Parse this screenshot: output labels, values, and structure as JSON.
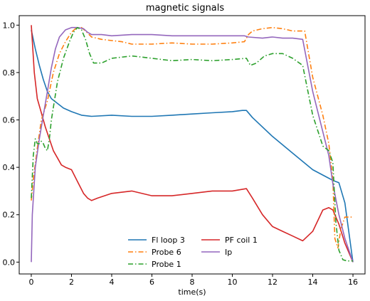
{
  "chart_data": {
    "type": "line",
    "title": "magnetic signals",
    "xlabel": "time(s)",
    "ylabel": "",
    "xlim": [
      -0.6,
      16.6
    ],
    "ylim": [
      -0.05,
      1.04
    ],
    "x_ticks": [
      0,
      2,
      4,
      6,
      8,
      10,
      12,
      14,
      16
    ],
    "x_tick_labels": [
      "0",
      "2",
      "4",
      "6",
      "8",
      "10",
      "12",
      "14",
      "16"
    ],
    "y_ticks": [
      0.0,
      0.2,
      0.4,
      0.6,
      0.8,
      1.0
    ],
    "y_tick_labels": [
      "0.0",
      "0.2",
      "0.4",
      "0.6",
      "0.8",
      "1.0"
    ],
    "grid": false,
    "legend_position": "bottom-center",
    "series": [
      {
        "name": "Fl loop 3",
        "color": "#1f77b4",
        "style": "solid",
        "x": [
          0,
          0.2,
          0.4,
          0.6,
          0.8,
          1.0,
          1.3,
          1.6,
          2.0,
          2.5,
          3.0,
          4.0,
          5.0,
          6.0,
          7.0,
          8.0,
          9.0,
          10.0,
          10.5,
          10.7,
          11.0,
          12.0,
          13.0,
          14.0,
          15.0,
          15.3,
          15.6,
          16.0
        ],
        "y": [
          0.98,
          0.9,
          0.83,
          0.77,
          0.72,
          0.69,
          0.67,
          0.65,
          0.635,
          0.62,
          0.615,
          0.62,
          0.615,
          0.615,
          0.62,
          0.625,
          0.63,
          0.635,
          0.64,
          0.64,
          0.61,
          0.53,
          0.46,
          0.39,
          0.345,
          0.335,
          0.25,
          0.0
        ]
      },
      {
        "name": "PF coil 1",
        "color": "#d62728",
        "style": "solid",
        "x": [
          0,
          0.15,
          0.3,
          0.5,
          0.7,
          0.9,
          1.1,
          1.3,
          1.5,
          1.7,
          2.0,
          2.3,
          2.6,
          2.8,
          3.0,
          3.3,
          4.0,
          5.0,
          6.0,
          7.0,
          8.0,
          9.0,
          10.0,
          10.7,
          11.0,
          11.5,
          12.0,
          12.5,
          13.0,
          13.5,
          14.0,
          14.5,
          14.8,
          15.0,
          15.3,
          15.6,
          16.0
        ],
        "y": [
          1.0,
          0.8,
          0.69,
          0.63,
          0.57,
          0.52,
          0.47,
          0.44,
          0.41,
          0.4,
          0.39,
          0.34,
          0.29,
          0.27,
          0.26,
          0.27,
          0.29,
          0.3,
          0.28,
          0.28,
          0.29,
          0.3,
          0.3,
          0.31,
          0.27,
          0.2,
          0.15,
          0.13,
          0.11,
          0.09,
          0.13,
          0.22,
          0.23,
          0.22,
          0.16,
          0.08,
          0.0
        ]
      },
      {
        "name": "Probe 6",
        "color": "#ff7f0e",
        "style": "dashdot",
        "x": [
          0,
          0.1,
          0.3,
          0.5,
          0.8,
          1.1,
          1.4,
          1.7,
          2.0,
          2.2,
          2.5,
          2.7,
          3.0,
          3.5,
          4.0,
          4.5,
          5.0,
          6.0,
          7.0,
          8.0,
          9.0,
          10.0,
          10.6,
          10.8,
          11.0,
          11.5,
          12.0,
          12.5,
          13.0,
          13.6,
          14.0,
          14.5,
          14.8,
          15.0,
          15.1,
          15.25,
          15.4,
          15.6,
          16.0
        ],
        "y": [
          0.26,
          0.35,
          0.48,
          0.6,
          0.68,
          0.8,
          0.88,
          0.93,
          0.97,
          0.985,
          0.99,
          0.975,
          0.95,
          0.94,
          0.935,
          0.93,
          0.92,
          0.92,
          0.925,
          0.92,
          0.92,
          0.925,
          0.93,
          0.96,
          0.975,
          0.985,
          0.99,
          0.985,
          0.975,
          0.975,
          0.78,
          0.62,
          0.5,
          0.35,
          0.1,
          0.06,
          0.14,
          0.19,
          0.19
        ]
      },
      {
        "name": "Ip",
        "color": "#9467bd",
        "style": "solid",
        "x": [
          0,
          0.05,
          0.2,
          0.4,
          0.6,
          0.8,
          1.0,
          1.2,
          1.4,
          1.7,
          2.0,
          2.3,
          2.6,
          2.8,
          3.0,
          3.5,
          4.0,
          5.0,
          6.0,
          7.0,
          8.0,
          9.0,
          10.0,
          10.6,
          10.8,
          11.5,
          12.0,
          12.5,
          13.0,
          13.5,
          14.0,
          14.5,
          14.8,
          15.0,
          15.3,
          15.6,
          16.0
        ],
        "y": [
          0.0,
          0.2,
          0.4,
          0.52,
          0.62,
          0.72,
          0.82,
          0.9,
          0.95,
          0.98,
          0.99,
          0.99,
          0.985,
          0.97,
          0.96,
          0.96,
          0.955,
          0.96,
          0.96,
          0.955,
          0.955,
          0.955,
          0.955,
          0.955,
          0.95,
          0.945,
          0.95,
          0.945,
          0.945,
          0.94,
          0.72,
          0.55,
          0.45,
          0.33,
          0.2,
          0.1,
          0.0
        ]
      },
      {
        "name": "Probe 1",
        "color": "#2ca02c",
        "style": "dashdot",
        "x": [
          0,
          0.1,
          0.2,
          0.3,
          0.4,
          0.5,
          0.6,
          0.7,
          0.8,
          0.9,
          1.0,
          1.3,
          1.6,
          1.9,
          2.1,
          2.3,
          2.5,
          2.7,
          2.9,
          3.1,
          3.5,
          4.0,
          4.5,
          5.0,
          6.0,
          7.0,
          8.0,
          9.0,
          10.0,
          10.7,
          10.9,
          11.2,
          11.6,
          12.0,
          12.5,
          13.0,
          13.5,
          14.0,
          14.5,
          14.8,
          15.0,
          15.15,
          15.3,
          15.5,
          15.7,
          16.0
        ],
        "y": [
          0.27,
          0.45,
          0.52,
          0.5,
          0.5,
          0.51,
          0.5,
          0.48,
          0.47,
          0.52,
          0.6,
          0.76,
          0.86,
          0.93,
          0.97,
          0.99,
          0.98,
          0.94,
          0.88,
          0.84,
          0.84,
          0.86,
          0.865,
          0.87,
          0.86,
          0.85,
          0.855,
          0.85,
          0.855,
          0.86,
          0.83,
          0.84,
          0.87,
          0.88,
          0.88,
          0.86,
          0.83,
          0.62,
          0.49,
          0.47,
          0.42,
          0.17,
          0.05,
          0.01,
          0.005,
          0.005
        ]
      }
    ],
    "legend": {
      "columns": [
        [
          "Fl loop 3",
          "Probe 6",
          "Probe 1"
        ],
        [
          "PF coil 1",
          "Ip"
        ]
      ]
    }
  }
}
